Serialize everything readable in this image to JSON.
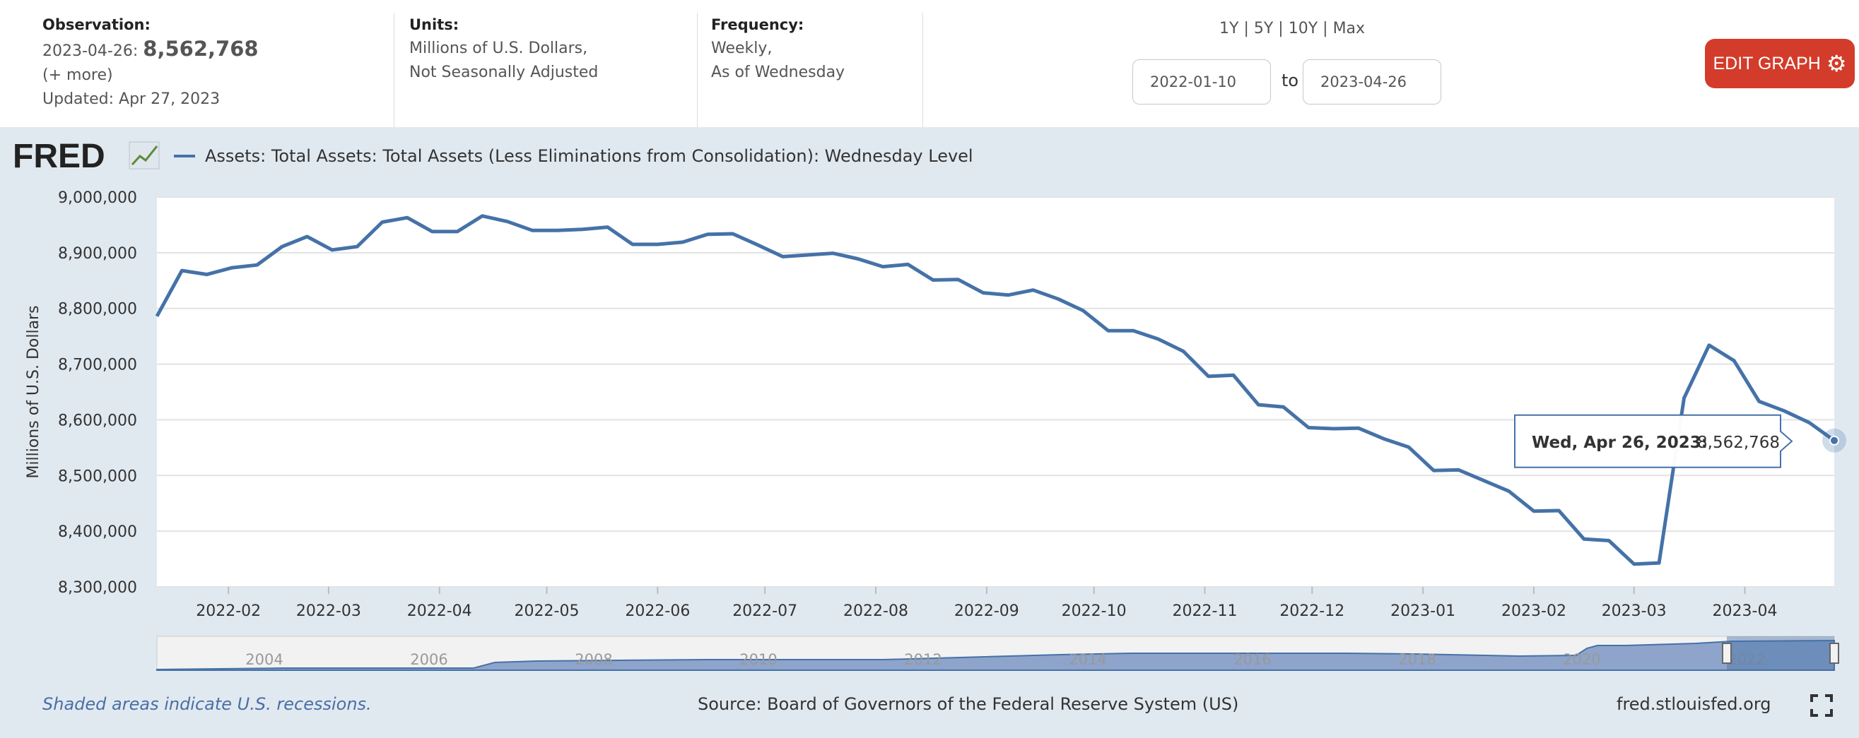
{
  "observation": {
    "label": "Observation:",
    "date_prefix": "2023-04-26:",
    "value": "8,562,768",
    "more": "(+ more)",
    "updated": "Updated: Apr 27, 2023"
  },
  "units": {
    "label": "Units:",
    "line1": "Millions of U.S. Dollars,",
    "line2": "Not Seasonally Adjusted"
  },
  "frequency": {
    "label": "Frequency:",
    "line1": "Weekly,",
    "line2": "As of Wednesday"
  },
  "ranges": {
    "r1y": "1Y",
    "r5y": "5Y",
    "r10y": "10Y",
    "rmax": "Max",
    "sep": "|"
  },
  "date_range": {
    "from": "2022-01-10",
    "to_label": "to",
    "to": "2023-04-26"
  },
  "edit_button": {
    "label": "EDIT GRAPH",
    "icon": "gear-icon"
  },
  "logo": {
    "text": "FRED"
  },
  "footer": {
    "recession_note": "Shaded areas indicate U.S. recessions.",
    "source": "Source: Board of Governors of the Federal Reserve System (US)",
    "site": "fred.stlouisfed.org"
  },
  "colors": {
    "series": "#4572a7",
    "edit_button": "#d33c2a",
    "background": "#e1e9f0"
  },
  "chart_data": {
    "type": "line",
    "title": "",
    "xlabel": "",
    "ylabel": "Millions of U.S. Dollars",
    "ylim": [
      8300000,
      9000000
    ],
    "yticks": [
      8300000,
      8400000,
      8500000,
      8600000,
      8700000,
      8800000,
      8900000,
      9000000
    ],
    "ytick_labels": [
      "8,300,000",
      "8,400,000",
      "8,500,000",
      "8,600,000",
      "8,700,000",
      "8,800,000",
      "8,900,000",
      "9,000,000"
    ],
    "xlim": [
      "2022-01-12",
      "2023-04-26"
    ],
    "xticks": [
      "2022-02-01",
      "2022-03-01",
      "2022-04-01",
      "2022-05-01",
      "2022-06-01",
      "2022-07-01",
      "2022-08-01",
      "2022-09-01",
      "2022-10-01",
      "2022-11-01",
      "2022-12-01",
      "2023-01-01",
      "2023-02-01",
      "2023-03-01",
      "2023-04-01"
    ],
    "xtick_labels": [
      "2022-02",
      "2022-03",
      "2022-04",
      "2022-05",
      "2022-06",
      "2022-07",
      "2022-08",
      "2022-09",
      "2022-10",
      "2022-11",
      "2022-12",
      "2023-01",
      "2023-02",
      "2023-03",
      "2023-04"
    ],
    "grid": true,
    "legend": "top-left",
    "series": [
      {
        "name": "Assets: Total Assets: Total Assets (Less Eliminations from Consolidation): Wednesday Level",
        "x": [
          "2022-01-12",
          "2022-01-19",
          "2022-01-26",
          "2022-02-02",
          "2022-02-09",
          "2022-02-16",
          "2022-02-23",
          "2022-03-02",
          "2022-03-09",
          "2022-03-16",
          "2022-03-23",
          "2022-03-30",
          "2022-04-06",
          "2022-04-13",
          "2022-04-20",
          "2022-04-27",
          "2022-05-04",
          "2022-05-11",
          "2022-05-18",
          "2022-05-25",
          "2022-06-01",
          "2022-06-08",
          "2022-06-15",
          "2022-06-22",
          "2022-06-29",
          "2022-07-06",
          "2022-07-13",
          "2022-07-20",
          "2022-07-27",
          "2022-08-03",
          "2022-08-10",
          "2022-08-17",
          "2022-08-24",
          "2022-08-31",
          "2022-09-07",
          "2022-09-14",
          "2022-09-21",
          "2022-09-28",
          "2022-10-05",
          "2022-10-12",
          "2022-10-19",
          "2022-10-26",
          "2022-11-02",
          "2022-11-09",
          "2022-11-16",
          "2022-11-23",
          "2022-11-30",
          "2022-12-07",
          "2022-12-14",
          "2022-12-21",
          "2022-12-28",
          "2023-01-04",
          "2023-01-11",
          "2023-01-18",
          "2023-01-25",
          "2023-02-01",
          "2023-02-08",
          "2023-02-15",
          "2023-02-22",
          "2023-03-01",
          "2023-03-08",
          "2023-03-15",
          "2023-03-22",
          "2023-03-29",
          "2023-04-05",
          "2023-04-12",
          "2023-04-19",
          "2023-04-26"
        ],
        "values": [
          8786000,
          8868000,
          8861000,
          8873000,
          8878000,
          8911000,
          8929000,
          8905000,
          8911000,
          8955000,
          8963000,
          8938000,
          8938000,
          8966000,
          8956000,
          8940000,
          8940000,
          8942000,
          8946000,
          8915000,
          8915000,
          8919000,
          8933000,
          8934000,
          8914000,
          8893000,
          8896000,
          8899000,
          8889000,
          8875000,
          8879000,
          8851000,
          8852000,
          8828000,
          8824000,
          8833000,
          8817000,
          8796000,
          8760000,
          8760000,
          8745000,
          8723000,
          8678000,
          8680000,
          8627000,
          8623000,
          8586000,
          8584000,
          8585000,
          8566000,
          8551000,
          8509000,
          8510000,
          8491000,
          8472000,
          8436000,
          8437000,
          8386000,
          8383000,
          8341000,
          8343000,
          8639000,
          8734000,
          8706000,
          8633000,
          8616000,
          8595000,
          8562768
        ]
      }
    ],
    "tooltip": {
      "label": "Wed, Apr 26, 2023:",
      "value": "8,562,768"
    },
    "navigator": {
      "labels": [
        "2004",
        "2006",
        "2008",
        "2010",
        "2012",
        "2014",
        "2016",
        "2018",
        "2020",
        "2022"
      ]
    }
  }
}
